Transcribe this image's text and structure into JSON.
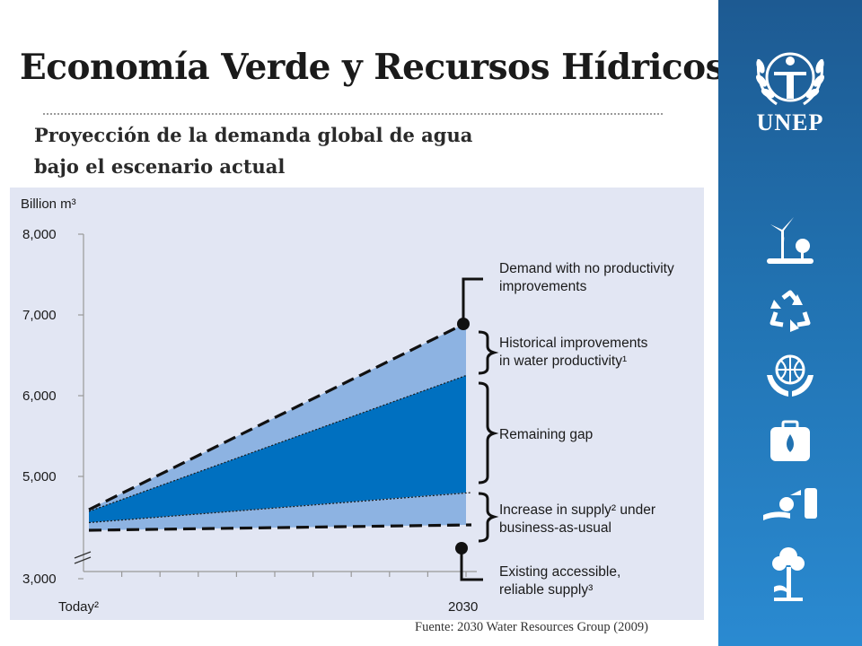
{
  "slide": {
    "title": "Economía Verde y Recursos Hídricos",
    "subtitle_line1": "Proyección de la demanda global de agua",
    "subtitle_line2": "bajo el escenario actual",
    "source": "Fuente: 2030 Water Resources Group (2009)"
  },
  "sidebar": {
    "logo_text": "UNEP",
    "icons": [
      "unep-laurel-logo-icon",
      "wind-turbine-icon",
      "recycle-icon",
      "globe-hands-icon",
      "water-kit-icon",
      "oil-barrel-icon",
      "tree-icon"
    ],
    "colors": {
      "top": "#1d5a92",
      "bottom": "#2a8ad1"
    }
  },
  "chart_data": {
    "type": "area",
    "ylabel": "Billion m³",
    "ylim": [
      3000,
      8000
    ],
    "yticks": [
      8000,
      7000,
      6000,
      5000,
      3000
    ],
    "ytick_labels": [
      "8,000",
      "7,000",
      "6,000",
      "5,000",
      "3,000"
    ],
    "x_labels": [
      "Today²",
      "2030"
    ],
    "axis_break": true,
    "series": [
      {
        "name": "Demand with no productivity improvements",
        "values": [
          4500,
          6900
        ]
      },
      {
        "name": "Historical improvements in water productivity¹",
        "values": [
          4500,
          6250
        ]
      },
      {
        "name": "Increase in supply² under business-as-usual",
        "values": [
          4450,
          4800
        ]
      },
      {
        "name": "Existing accessible, reliable supply³",
        "values": [
          4400,
          4400
        ]
      }
    ],
    "annotations": {
      "demand_label_line1": "Demand with no productivity",
      "demand_label_line2": "improvements",
      "historical_label_line1": "Historical improvements",
      "historical_label_line2": "in water productivity¹",
      "gap_label": "Remaining gap",
      "supply_label_line1": "Increase in supply² under",
      "supply_label_line2": "business-as-usual",
      "existing_label_line1": "Existing accessible,",
      "existing_label_line2": "reliable supply³"
    },
    "colors": {
      "panel": "#e2e6f3",
      "light_band": "#8db3e2",
      "gap_band": "#0070c0",
      "dashed": "#111111"
    }
  }
}
